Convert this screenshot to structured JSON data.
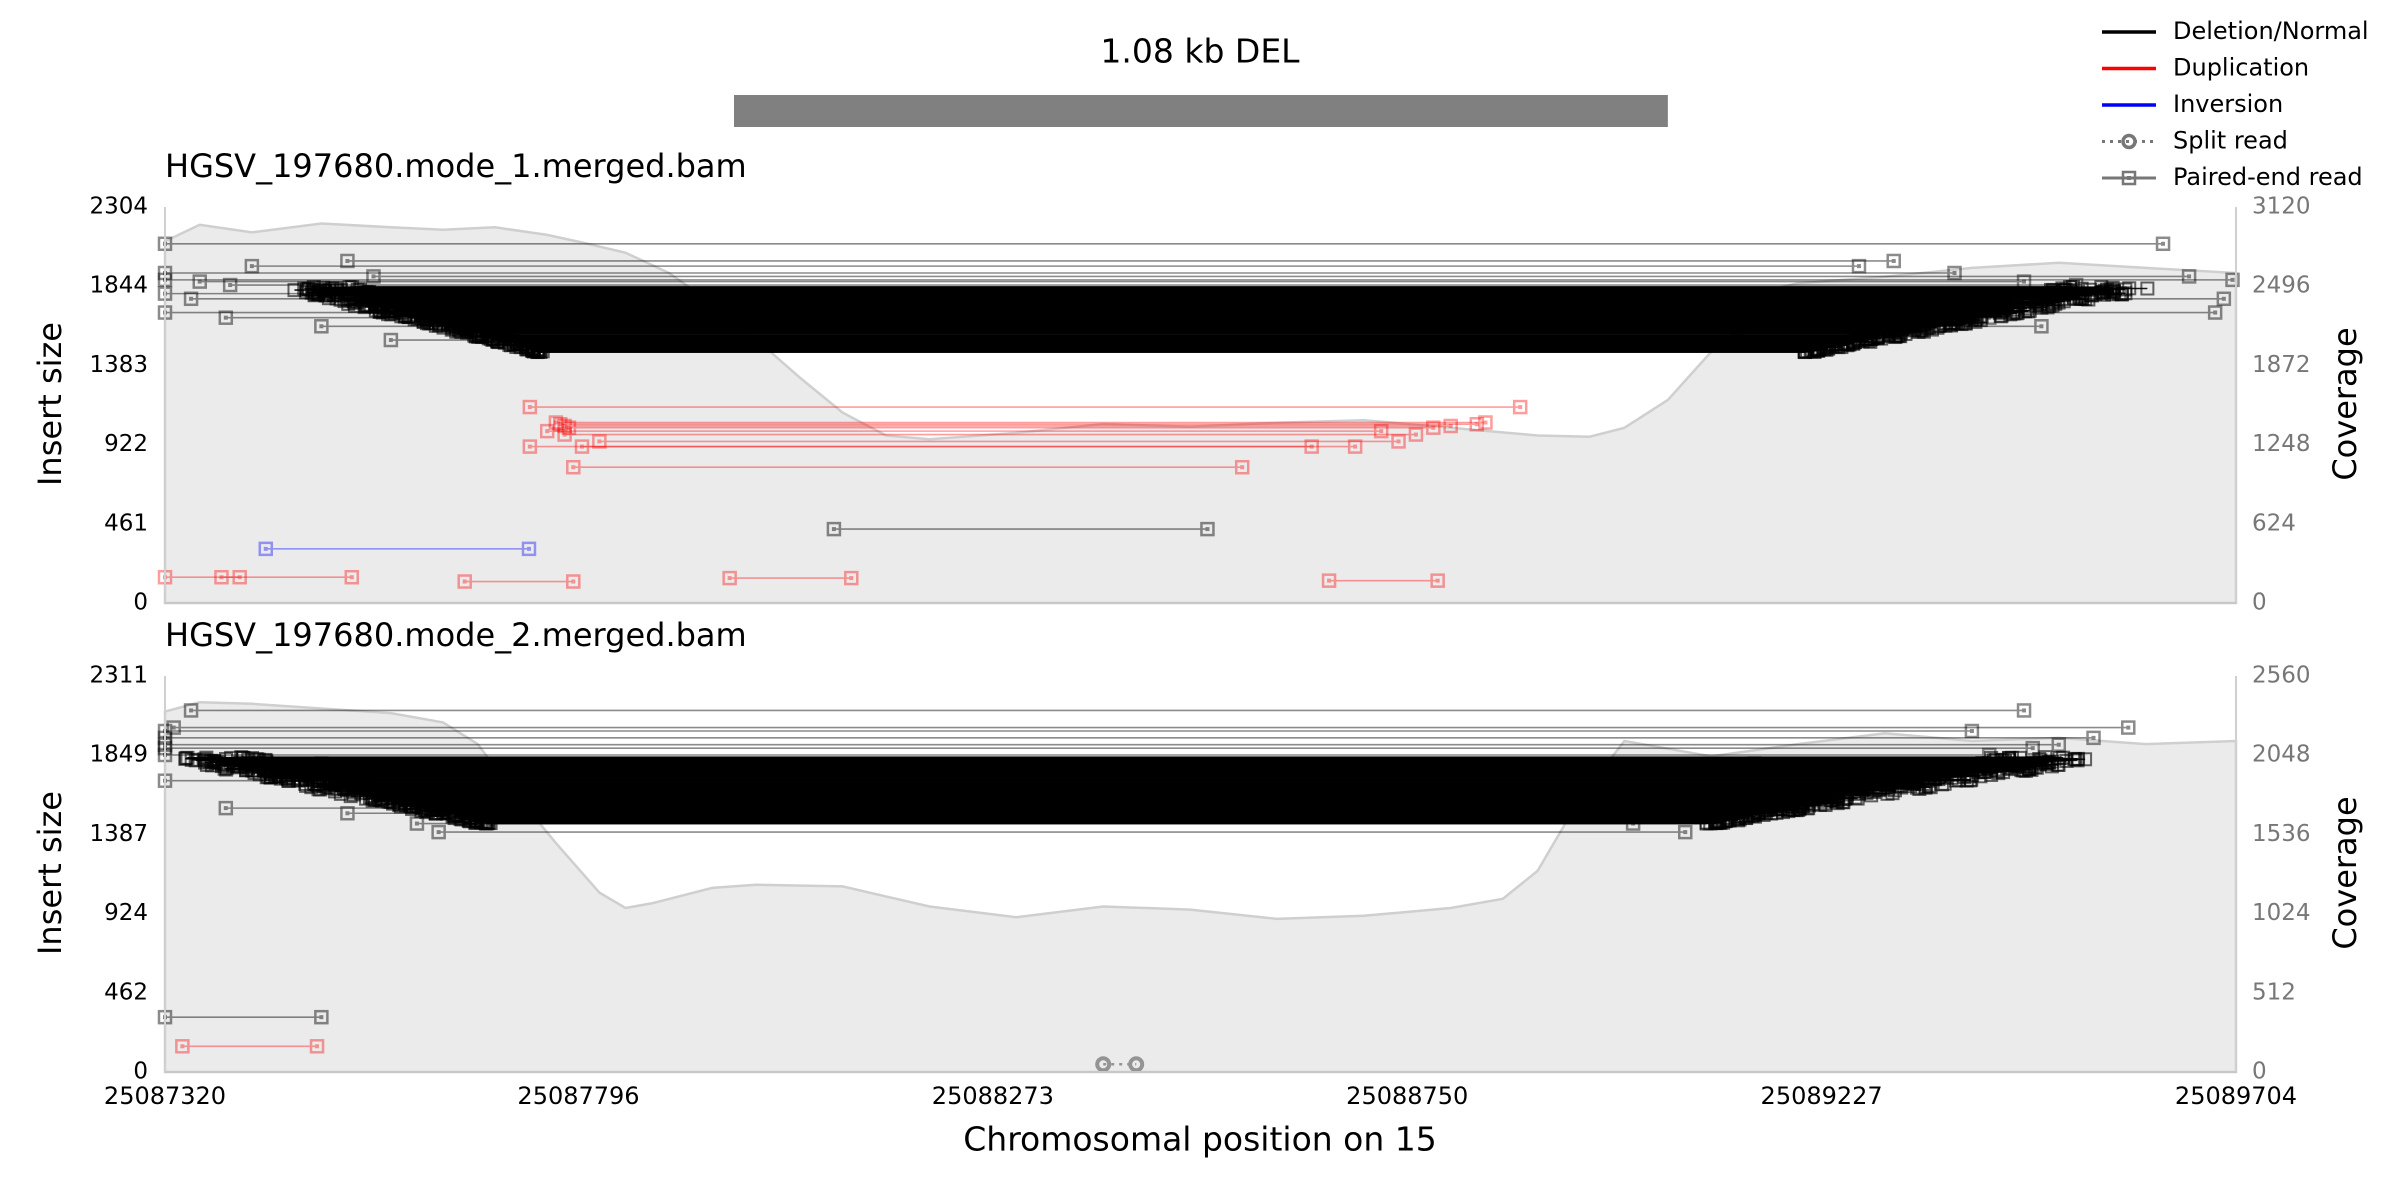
{
  "chart_data": {
    "type": "scatter",
    "title": "1.08 kb DEL",
    "xlabel": "Chromosomal position on 15",
    "xlim": [
      25087320,
      25089704
    ],
    "xticks": [
      "25087320",
      "25087796",
      "25088273",
      "25088750",
      "25089227",
      "25089704"
    ],
    "xtick_values": [
      25087320,
      25087796,
      25088273,
      25088750,
      25089227,
      25089704
    ],
    "sv_region": [
      25087975,
      25089050
    ],
    "colors": {
      "deletion": "#000000",
      "duplication": "#ff0000",
      "inversion": "#0000ff",
      "split": "#777777",
      "paired": "#777777",
      "coverage_fill": "#ebebeb",
      "coverage_line": "#cfcfcf",
      "sv_bar": "#808080"
    },
    "legend": {
      "placement": "top-right",
      "entries": [
        {
          "label": "Deletion/Normal",
          "color": "#000000",
          "style": "line"
        },
        {
          "label": "Duplication",
          "color": "#ff0000",
          "style": "line"
        },
        {
          "label": "Inversion",
          "color": "#0000ff",
          "style": "line"
        },
        {
          "label": "Split read",
          "color": "#777777",
          "style": "dotted-circle"
        },
        {
          "label": "Paired-end read",
          "color": "#777777",
          "style": "solid-square"
        }
      ]
    },
    "panels": [
      {
        "title": "HGSV_197680.mode_1.merged.bam",
        "ylabel": "Insert size",
        "ylabel_right": "Coverage",
        "ylim": [
          0,
          2304
        ],
        "yticks": [
          0,
          461,
          922,
          1383,
          1844,
          2304
        ],
        "ytick_labels": [
          "0",
          "461",
          "922",
          "1383",
          "1844",
          "2304"
        ],
        "ylim_right": [
          0,
          3120
        ],
        "yticks_right": [
          0,
          624,
          1248,
          1872,
          2496,
          3120
        ],
        "ytick_labels_right": [
          "0",
          "624",
          "1248",
          "1872",
          "2496",
          "3120"
        ],
        "coverage": {
          "x": [
            25087320,
            25087360,
            25087420,
            25087500,
            25087580,
            25087640,
            25087700,
            25087760,
            25087800,
            25087850,
            25087900,
            25087950,
            25088000,
            25088050,
            25088100,
            25088150,
            25088200,
            25088300,
            25088400,
            25088500,
            25088600,
            25088700,
            25088800,
            25088900,
            25088960,
            25089000,
            25089050,
            25089100,
            25089150,
            25089200,
            25089300,
            25089400,
            25089500,
            25089600,
            25089704
          ],
          "values": [
            2850,
            2980,
            2920,
            2990,
            2960,
            2940,
            2960,
            2900,
            2840,
            2760,
            2600,
            2360,
            2080,
            1780,
            1500,
            1320,
            1290,
            1340,
            1410,
            1390,
            1420,
            1440,
            1380,
            1320,
            1310,
            1380,
            1600,
            1980,
            2440,
            2520,
            2570,
            2640,
            2680,
            2640,
            2600
          ]
        },
        "deletion_reads": {
          "count": 260,
          "left_min": 25087450,
          "left_max": 25087800,
          "right_min": 25089150,
          "right_max": 25089620,
          "insert_min": 1460,
          "insert_max": 1840
        },
        "extra_reads": [
          {
            "type": "deletion",
            "x1": 25087320,
            "x2": 25089620,
            "y": 2090
          },
          {
            "type": "deletion",
            "x1": 25087530,
            "x2": 25089310,
            "y": 1990
          },
          {
            "type": "deletion",
            "x1": 25087420,
            "x2": 25089270,
            "y": 1960
          },
          {
            "type": "deletion",
            "x1": 25087320,
            "x2": 25089380,
            "y": 1920
          },
          {
            "type": "deletion",
            "x1": 25087560,
            "x2": 25089650,
            "y": 1900
          },
          {
            "type": "deletion",
            "x1": 25087320,
            "x2": 25089700,
            "y": 1880
          },
          {
            "type": "deletion",
            "x1": 25087360,
            "x2": 25089460,
            "y": 1870
          },
          {
            "type": "deletion",
            "x1": 25087395,
            "x2": 25089520,
            "y": 1850
          },
          {
            "type": "deletion",
            "x1": 25087320,
            "x2": 25089570,
            "y": 1800
          },
          {
            "type": "deletion",
            "x1": 25087350,
            "x2": 25089690,
            "y": 1770
          },
          {
            "type": "deletion",
            "x1": 25087320,
            "x2": 25089680,
            "y": 1690
          },
          {
            "type": "deletion",
            "x1": 25087390,
            "x2": 25089420,
            "y": 1660
          },
          {
            "type": "deletion",
            "x1": 25087500,
            "x2": 25089480,
            "y": 1610
          },
          {
            "type": "deletion",
            "x1": 25087580,
            "x2": 25089130,
            "y": 1530
          },
          {
            "type": "duplication",
            "x1": 25087740,
            "x2": 25088880,
            "y": 1140
          },
          {
            "type": "duplication",
            "x1": 25087770,
            "x2": 25088840,
            "y": 1050
          },
          {
            "type": "duplication",
            "x1": 25087775,
            "x2": 25088830,
            "y": 1040
          },
          {
            "type": "duplication",
            "x1": 25087780,
            "x2": 25088800,
            "y": 1030
          },
          {
            "type": "duplication",
            "x1": 25087785,
            "x2": 25088780,
            "y": 1020
          },
          {
            "type": "duplication",
            "x1": 25087760,
            "x2": 25088720,
            "y": 1000
          },
          {
            "type": "duplication",
            "x1": 25087780,
            "x2": 25088760,
            "y": 980
          },
          {
            "type": "duplication",
            "x1": 25087820,
            "x2": 25088740,
            "y": 940
          },
          {
            "type": "duplication",
            "x1": 25087740,
            "x2": 25088640,
            "y": 910
          },
          {
            "type": "duplication",
            "x1": 25087800,
            "x2": 25088690,
            "y": 910
          },
          {
            "type": "duplication",
            "x1": 25087790,
            "x2": 25088560,
            "y": 790
          },
          {
            "type": "inversion",
            "x1": 25087436,
            "x2": 25087739,
            "y": 315
          },
          {
            "type": "deletion",
            "x1": 25088090,
            "x2": 25088520,
            "y": 430
          },
          {
            "type": "duplication",
            "x1": 25087320,
            "x2": 25087535,
            "y": 150
          },
          {
            "type": "duplication",
            "x1": 25087385,
            "x2": 25087406,
            "y": 150
          },
          {
            "type": "duplication",
            "x1": 25087665,
            "x2": 25087790,
            "y": 125
          },
          {
            "type": "duplication",
            "x1": 25087970,
            "x2": 25088110,
            "y": 145
          },
          {
            "type": "duplication",
            "x1": 25088660,
            "x2": 25088785,
            "y": 130
          }
        ],
        "split_reads": []
      },
      {
        "title": "HGSV_197680.mode_2.merged.bam",
        "ylabel": "Insert size",
        "ylabel_right": "Coverage",
        "ylim": [
          0,
          2311
        ],
        "yticks": [
          0,
          462,
          924,
          1387,
          1849,
          2311
        ],
        "ytick_labels": [
          "0",
          "462",
          "924",
          "1387",
          "1849",
          "2311"
        ],
        "ylim_right": [
          0,
          2560
        ],
        "yticks_right": [
          0,
          512,
          1024,
          1536,
          2048,
          2560
        ],
        "ytick_labels_right": [
          "0",
          "512",
          "1024",
          "1536",
          "2048",
          "2560"
        ],
        "coverage": {
          "x": [
            25087320,
            25087360,
            25087420,
            25087500,
            25087580,
            25087640,
            25087680,
            25087720,
            25087770,
            25087820,
            25087850,
            25087880,
            25087950,
            25088000,
            25088100,
            25088200,
            25088300,
            25088400,
            25088500,
            25088600,
            25088700,
            25088800,
            25088860,
            25088900,
            25088950,
            25089000,
            25089050,
            25089100,
            25089200,
            25089300,
            25089400,
            25089500,
            25089600,
            25089704
          ],
          "values": [
            2330,
            2390,
            2380,
            2350,
            2320,
            2260,
            2120,
            1820,
            1480,
            1160,
            1060,
            1090,
            1190,
            1210,
            1200,
            1070,
            1000,
            1070,
            1050,
            990,
            1010,
            1060,
            1120,
            1300,
            1780,
            2140,
            2090,
            2040,
            2120,
            2190,
            2140,
            2160,
            2120,
            2140
          ]
        },
        "deletion_reads": {
          "count": 260,
          "left_min": 25087320,
          "left_max": 25087745,
          "right_min": 25089030,
          "right_max": 25089560,
          "insert_min": 1450,
          "insert_max": 1840
        },
        "extra_reads": [
          {
            "type": "deletion",
            "x1": 25087350,
            "x2": 25089460,
            "y": 2110
          },
          {
            "type": "deletion",
            "x1": 25087330,
            "x2": 25089580,
            "y": 2010
          },
          {
            "type": "deletion",
            "x1": 25087320,
            "x2": 25089400,
            "y": 1990
          },
          {
            "type": "deletion",
            "x1": 25087320,
            "x2": 25089540,
            "y": 1950
          },
          {
            "type": "deletion",
            "x1": 25087320,
            "x2": 25089500,
            "y": 1910
          },
          {
            "type": "deletion",
            "x1": 25087320,
            "x2": 25089470,
            "y": 1890
          },
          {
            "type": "deletion",
            "x1": 25087320,
            "x2": 25089420,
            "y": 1850
          },
          {
            "type": "deletion",
            "x1": 25087500,
            "x2": 25089150,
            "y": 1800
          },
          {
            "type": "deletion",
            "x1": 25087320,
            "x2": 25089330,
            "y": 1700
          },
          {
            "type": "deletion",
            "x1": 25087390,
            "x2": 25089210,
            "y": 1540
          },
          {
            "type": "deletion",
            "x1": 25087530,
            "x2": 25089130,
            "y": 1510
          },
          {
            "type": "deletion",
            "x1": 25087635,
            "x2": 25089070,
            "y": 1400
          },
          {
            "type": "deletion",
            "x1": 25087610,
            "x2": 25089010,
            "y": 1450
          },
          {
            "type": "deletion",
            "x1": 25087320,
            "x2": 25087500,
            "y": 320
          },
          {
            "type": "duplication",
            "x1": 25087340,
            "x2": 25087495,
            "y": 150
          }
        ],
        "split_reads": [
          {
            "x1": 25088400,
            "x2": 25088438,
            "y": 45
          }
        ]
      }
    ]
  }
}
